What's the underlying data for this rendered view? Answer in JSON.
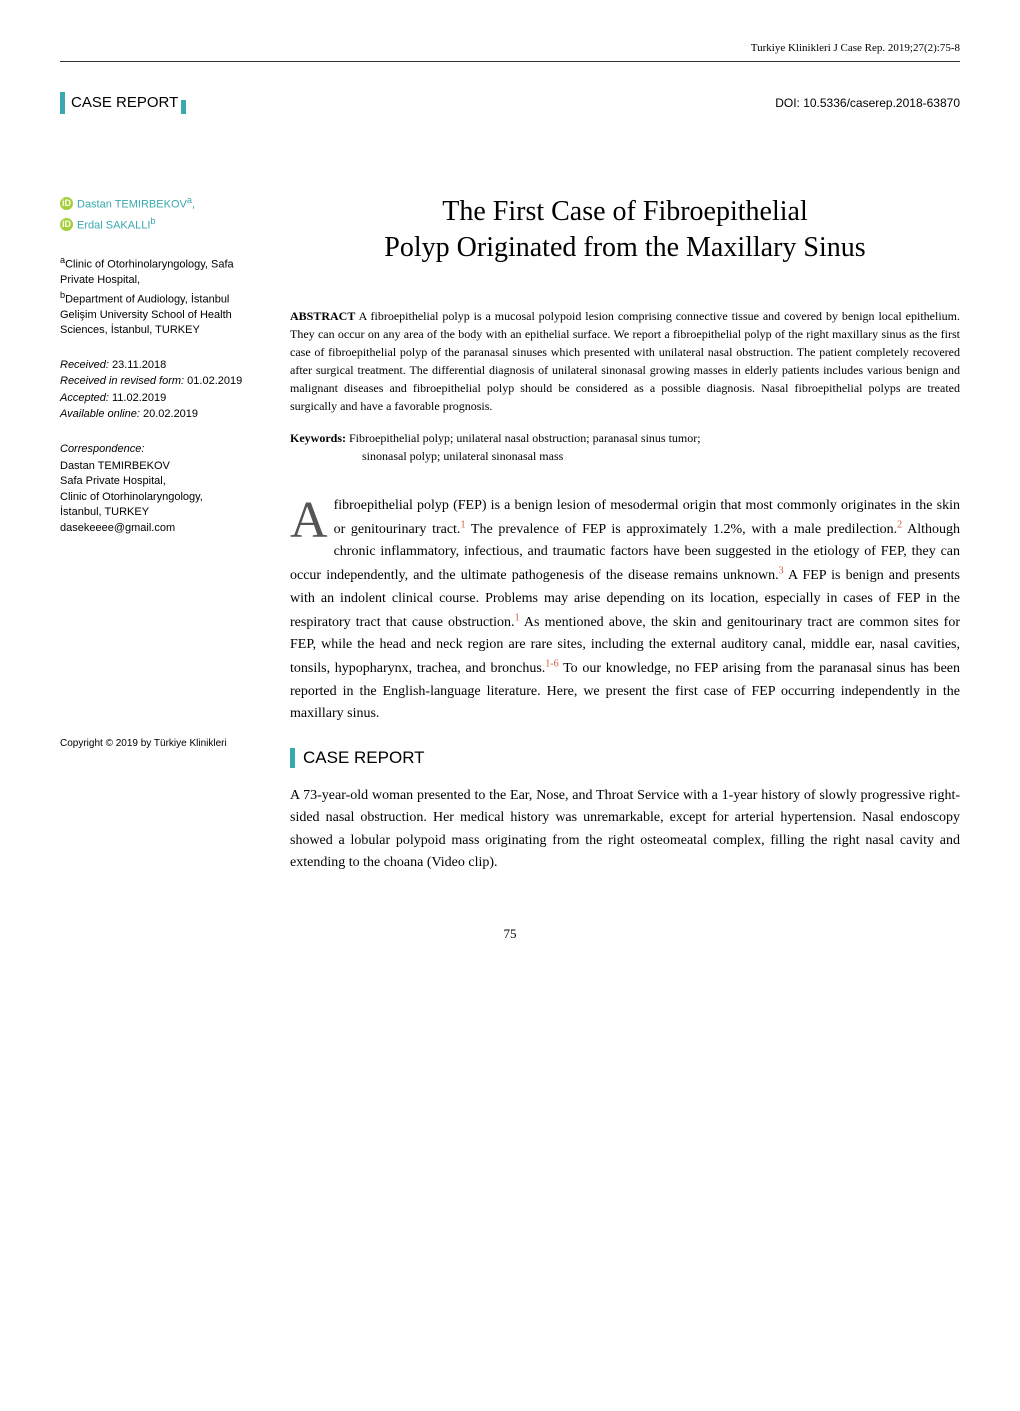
{
  "journal_header": "Turkiye Klinikleri J Case Rep. 2019;27(2):75-8",
  "case_report_label": "CASE REPORT",
  "doi": "DOI: 10.5336/caserep.2018-63870",
  "title_line1": "The First Case of Fibroepithelial",
  "title_line2": "Polyp Originated from the Maxillary Sinus",
  "authors": [
    {
      "name": "Dastan TEMIRBEKOV",
      "sup": "a",
      "suffix": ","
    },
    {
      "name": "Erdal SAKALLI",
      "sup": "b",
      "suffix": ""
    }
  ],
  "affiliations": {
    "a": "Clinic of Otorhinolaryngology, Safa Private Hospital,",
    "b": "Department of Audiology, İstanbul Gelişim University School of Health Sciences, İstanbul, TURKEY"
  },
  "dates": {
    "received_label": "Received:",
    "received_value": "23.11.2018",
    "revised_label": "Received in revised form:",
    "revised_value": "01.02.2019",
    "accepted_label": "Accepted:",
    "accepted_value": "11.02.2019",
    "online_label": "Available online:",
    "online_value": "20.02.2019"
  },
  "correspondence": {
    "label": "Correspondence:",
    "name": "Dastan TEMIRBEKOV",
    "line1": "Safa Private Hospital,",
    "line2": "Clinic of Otorhinolaryngology,",
    "line3": "İstanbul, TURKEY",
    "email": "dasekeeee@gmail.com"
  },
  "abstract": {
    "label": "ABSTRACT",
    "text": "A fibroepithelial polyp is a mucosal polypoid lesion comprising connective tissue and covered by benign local epithelium. They can occur on any area of the body with an epithelial surface. We report a fibroepithelial polyp of the right maxillary sinus as the first case of fibroepithelial polyp of the paranasal sinuses which presented with unilateral nasal obstruction. The patient completely recovered after surgical treatment. The differential diagnosis of unilateral sinonasal growing masses in elderly patients includes various benign and malignant diseases and fibroepithelial polyp should be considered as a possible diagnosis. Nasal fibroepithelial polyps are treated surgically and have a favorable prognosis."
  },
  "keywords": {
    "label": "Keywords:",
    "line1": "Fibroepithelial polyp; unilateral nasal obstruction; paranasal sinus tumor;",
    "line2": "sinonasal polyp; unilateral sinonasal mass"
  },
  "intro_first_letter": "A",
  "intro_text": "fibroepithelial polyp (FEP) is a benign lesion of mesodermal origin that most commonly originates in the skin or genitourinary tract.<span class=\"ref\">1</span> The prevalence of FEP is approximately 1.2%, with a male predilection.<span class=\"ref\">2</span> Although chronic inflammatory, infectious, and traumatic factors have been suggested in the etiology of FEP, they can occur independently, and the ultimate pathogenesis of the disease remains unknown.<span class=\"ref\">3</span> A FEP is benign and presents with an indolent clinical course. Problems may arise depending on its location, especially in cases of FEP in the respiratory tract that cause obstruction.<span class=\"ref\">1</span> As mentioned above, the skin and genitourinary tract are common sites for FEP, while the head and neck region are rare sites, including the external auditory canal, middle ear, nasal cavities, tonsils, hypopharynx, trachea, and bronchus.<span class=\"ref\">1-6</span> To our knowledge, no FEP arising from the paranasal sinus has been reported in the English-language literature. Here, we present the first case of FEP occurring independently in the maxillary sinus.",
  "section_case_report": "CASE REPORT",
  "case_report_text": "A 73-year-old woman presented to the Ear, Nose, and Throat Service with a 1-year history of slowly progressive right-sided nasal obstruction. Her medical history was unremarkable, except for arterial hypertension. Nasal endoscopy showed a lobular polypoid mass originating from the right osteomeatal complex, filling the right nasal cavity and extending to the choana (Video clip).",
  "copyright": "Copyright © 2019 by Türkiye Klinikleri",
  "page_number": "75",
  "colors": {
    "cyan": "#3aa9af",
    "ref": "#ce5b3e",
    "orcid": "#a6ce39"
  }
}
